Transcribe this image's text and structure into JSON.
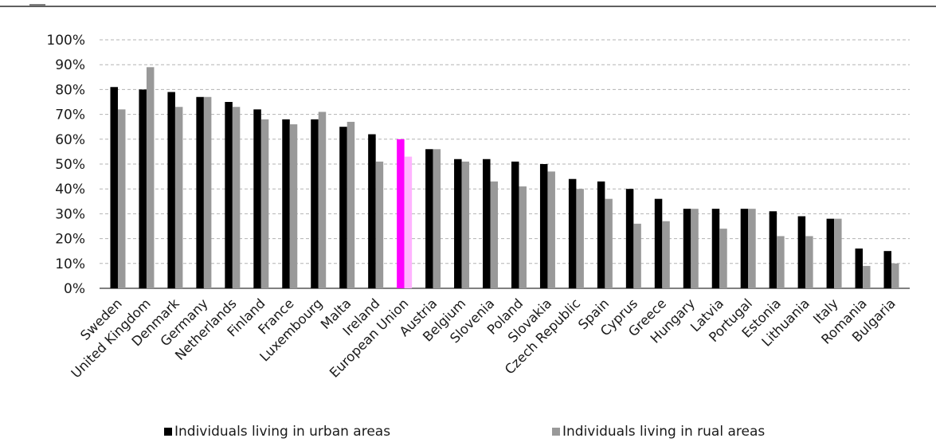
{
  "chart_data": {
    "type": "bar",
    "title": "",
    "xlabel": "",
    "ylabel": "",
    "ylim": [
      0,
      100
    ],
    "yticks": [
      "0%",
      "10%",
      "20%",
      "30%",
      "40%",
      "50%",
      "60%",
      "70%",
      "80%",
      "90%",
      "100%"
    ],
    "grid": true,
    "legend_position": "bottom",
    "categories": [
      "Sweden",
      "United Kingdom",
      "Denmark",
      "Germany",
      "Netherlands",
      "Finland",
      "France",
      "Luxembourg",
      "Malta",
      "Ireland",
      "European Union",
      "Austria",
      "Belgium",
      "Slovenia",
      "Poland",
      "Slovakia",
      "Czech Republic",
      "Spain",
      "Cyprus",
      "Greece",
      "Hungary",
      "Latvia",
      "Portugal",
      "Estonia",
      "Lithuania",
      "Italy",
      "Romania",
      "Bulgaria"
    ],
    "highlight_category": "European Union",
    "highlight_colors": [
      "#ff00ff",
      "#ffb3ff"
    ],
    "series": [
      {
        "name": "Individuals living in urban areas",
        "color": "#000000",
        "values": [
          81,
          80,
          79,
          77,
          75,
          72,
          68,
          68,
          65,
          62,
          60,
          56,
          52,
          52,
          51,
          50,
          44,
          43,
          40,
          36,
          32,
          32,
          32,
          31,
          29,
          28,
          16,
          15
        ]
      },
      {
        "name": "Individuals living in rual areas",
        "color": "#999999",
        "values": [
          72,
          89,
          73,
          77,
          73,
          68,
          66,
          71,
          67,
          51,
          53,
          56,
          51,
          43,
          41,
          47,
          40,
          36,
          26,
          27,
          32,
          24,
          32,
          21,
          21,
          28,
          9,
          10
        ]
      }
    ]
  }
}
